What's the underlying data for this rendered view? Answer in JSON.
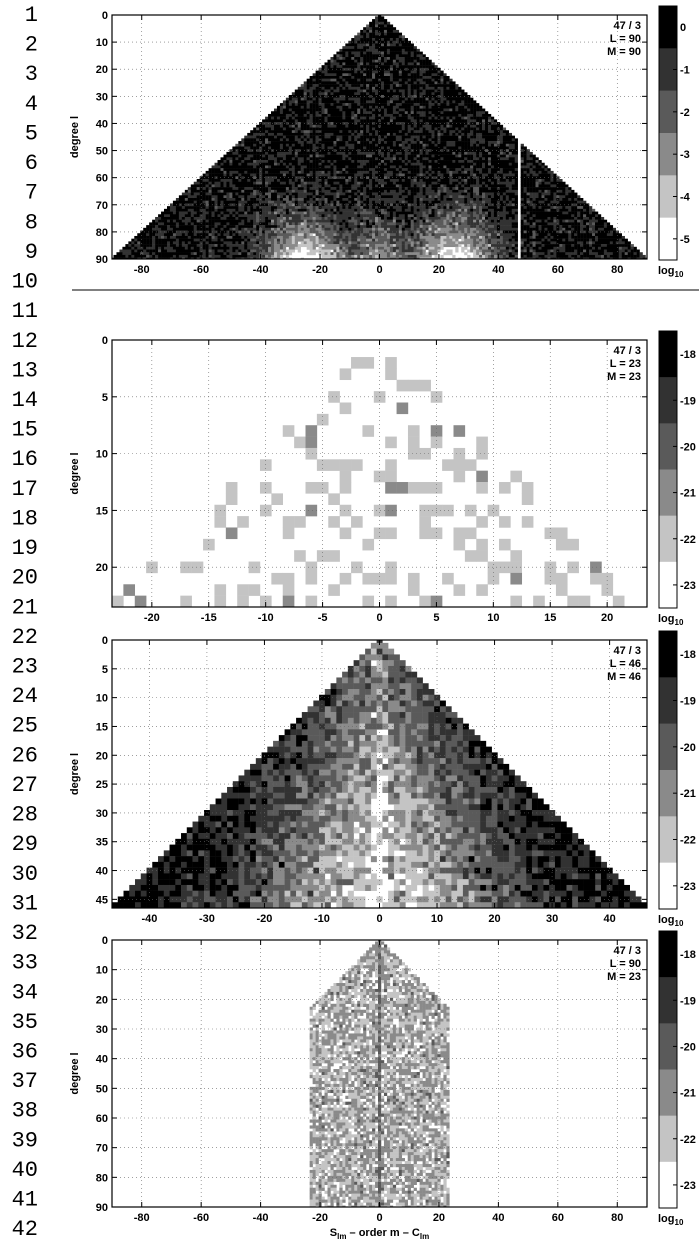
{
  "line_numbers": [
    "1",
    "2",
    "3",
    "4",
    "5",
    "6",
    "7",
    "8",
    "9",
    "10",
    "11",
    "12",
    "13",
    "14",
    "15",
    "16",
    "17",
    "18",
    "19",
    "20",
    "21",
    "22",
    "23",
    "24",
    "25",
    "26",
    "27",
    "28",
    "29",
    "30",
    "31",
    "32",
    "33",
    "34",
    "35",
    "36",
    "37",
    "38",
    "39",
    "40",
    "41",
    "42"
  ],
  "chart_data": [
    {
      "type": "heatmap",
      "ylabel": "degree l",
      "xlabel": "",
      "annotation": [
        "47 / 3",
        "L = 90",
        "M = 90"
      ],
      "L": 90,
      "M": 90,
      "xlim": [
        -90,
        90
      ],
      "ylim": [
        0,
        90
      ],
      "xticks": [
        -80,
        -60,
        -40,
        -20,
        0,
        20,
        40,
        60,
        80
      ],
      "yticks": [
        0,
        10,
        20,
        30,
        40,
        50,
        60,
        70,
        80,
        90
      ],
      "grid": true,
      "colorbar": {
        "ticks": [
          "0",
          "-1",
          "-2",
          "-3",
          "-4",
          "-5"
        ],
        "label": "log",
        "label_sub": "10",
        "range": [
          -5.5,
          0.5
        ]
      },
      "gap_order": 47,
      "pattern": "divergence"
    },
    {
      "type": "heatmap",
      "ylabel": "degree l",
      "xlabel": "",
      "annotation": [
        "47 / 3",
        "L = 23",
        "M = 23"
      ],
      "L": 23,
      "M": 23,
      "xlim": [
        -23.5,
        23.5
      ],
      "ylim": [
        0,
        23.5
      ],
      "xticks": [
        -20,
        -15,
        -10,
        -5,
        0,
        5,
        10,
        15,
        20
      ],
      "yticks": [
        0,
        5,
        10,
        15,
        20
      ],
      "grid": true,
      "colorbar": {
        "ticks": [
          "-18",
          "-19",
          "-20",
          "-21",
          "-22",
          "-23"
        ],
        "label": "log",
        "label_sub": "10",
        "range": [
          -23.5,
          -17.5
        ]
      },
      "pattern": "sparse"
    },
    {
      "type": "heatmap",
      "ylabel": "degree l",
      "xlabel": "",
      "annotation": [
        "47 / 3",
        "L = 46",
        "M = 46"
      ],
      "L": 46,
      "M": 46,
      "xlim": [
        -46.5,
        46.5
      ],
      "ylim": [
        0,
        46.5
      ],
      "xticks": [
        -40,
        -30,
        -20,
        -10,
        0,
        10,
        20,
        30,
        40
      ],
      "yticks": [
        0,
        5,
        10,
        15,
        20,
        25,
        30,
        35,
        40,
        45
      ],
      "grid": true,
      "colorbar": {
        "ticks": [
          "-18",
          "-19",
          "-20",
          "-21",
          "-22",
          "-23"
        ],
        "label": "log",
        "label_sub": "10",
        "range": [
          -23.5,
          -17.5
        ]
      },
      "pattern": "dense"
    },
    {
      "type": "heatmap",
      "ylabel": "degree l",
      "xlabel": {
        "s_main": "S",
        "s_sub": "lm",
        "middle": " – order m – ",
        "c_main": "C",
        "c_sub": "lm"
      },
      "annotation": [
        "47 / 3",
        "L = 90",
        "M = 23"
      ],
      "L": 90,
      "M": 23,
      "xlim": [
        -90,
        90
      ],
      "ylim": [
        0,
        90
      ],
      "xticks": [
        -80,
        -60,
        -40,
        -20,
        0,
        20,
        40,
        60,
        80
      ],
      "yticks": [
        0,
        10,
        20,
        30,
        40,
        50,
        60,
        70,
        80,
        90
      ],
      "grid": true,
      "colorbar": {
        "ticks": [
          "-18",
          "-19",
          "-20",
          "-21",
          "-22",
          "-23"
        ],
        "label": "log",
        "label_sub": "10",
        "range": [
          -23.5,
          -17.5
        ]
      },
      "pattern": "noise"
    }
  ]
}
